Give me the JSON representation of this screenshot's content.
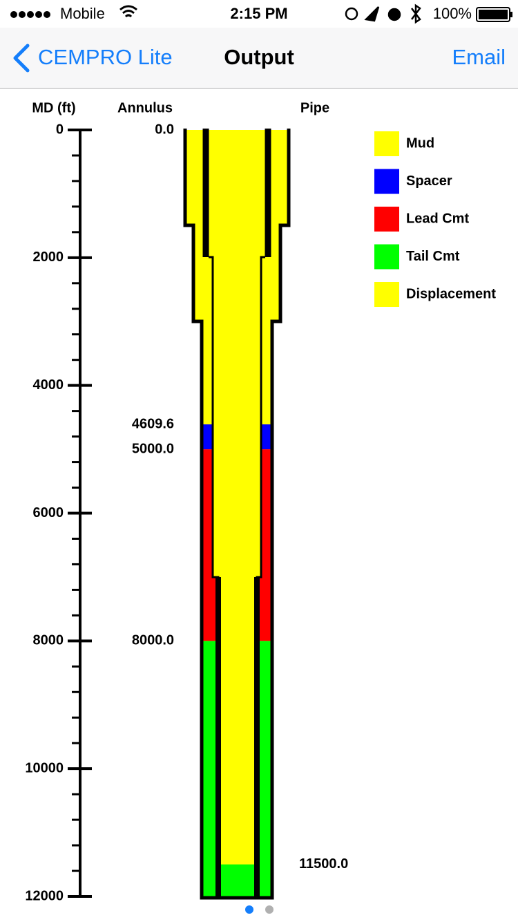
{
  "status_bar": {
    "carrier": "Mobile",
    "time": "2:15 PM",
    "battery": "100%"
  },
  "nav_bar": {
    "back": "CEMPRO Lite",
    "title": "Output",
    "action": "Email"
  },
  "chart_data": {
    "type": "wellbore",
    "y_label": "MD (ft)",
    "ylim": [
      0,
      12000
    ],
    "yticks": [
      0,
      2000,
      4000,
      6000,
      8000,
      10000,
      12000
    ],
    "minor_ticks": [
      400,
      800,
      1200,
      1600,
      2400,
      2800,
      3200,
      3600,
      4400,
      4800,
      5200,
      5600,
      6400,
      6800,
      7200,
      7600,
      8400,
      8800,
      9200,
      9600,
      10400,
      10800,
      11200,
      11600
    ],
    "annulus": {
      "name": "Annulus",
      "tops": [
        {
          "value": 0,
          "label": "0.0"
        },
        {
          "value": 4609.6,
          "label": "4609.6"
        },
        {
          "value": 5000,
          "label": "5000.0"
        },
        {
          "value": 8000,
          "label": "8000.0"
        }
      ],
      "colors": [
        "#ffff00",
        "#0000ff",
        "#ff0000",
        "#00ff00"
      ]
    },
    "pipe": {
      "name": "Pipe",
      "tops": [
        0,
        {
          "value": 11500,
          "label": "11500.0"
        }
      ],
      "colors": [
        "#ffff00",
        "#00ff00"
      ]
    },
    "legend": [
      {
        "name": "Mud",
        "color": "#ffff00"
      },
      {
        "name": "Spacer",
        "color": "#0000ff"
      },
      {
        "name": "Lead Cmt",
        "color": "#ff0000"
      },
      {
        "name": "Tail Cmt",
        "color": "#00ff00"
      },
      {
        "name": "Displacement",
        "color": "#ffff00"
      }
    ]
  }
}
